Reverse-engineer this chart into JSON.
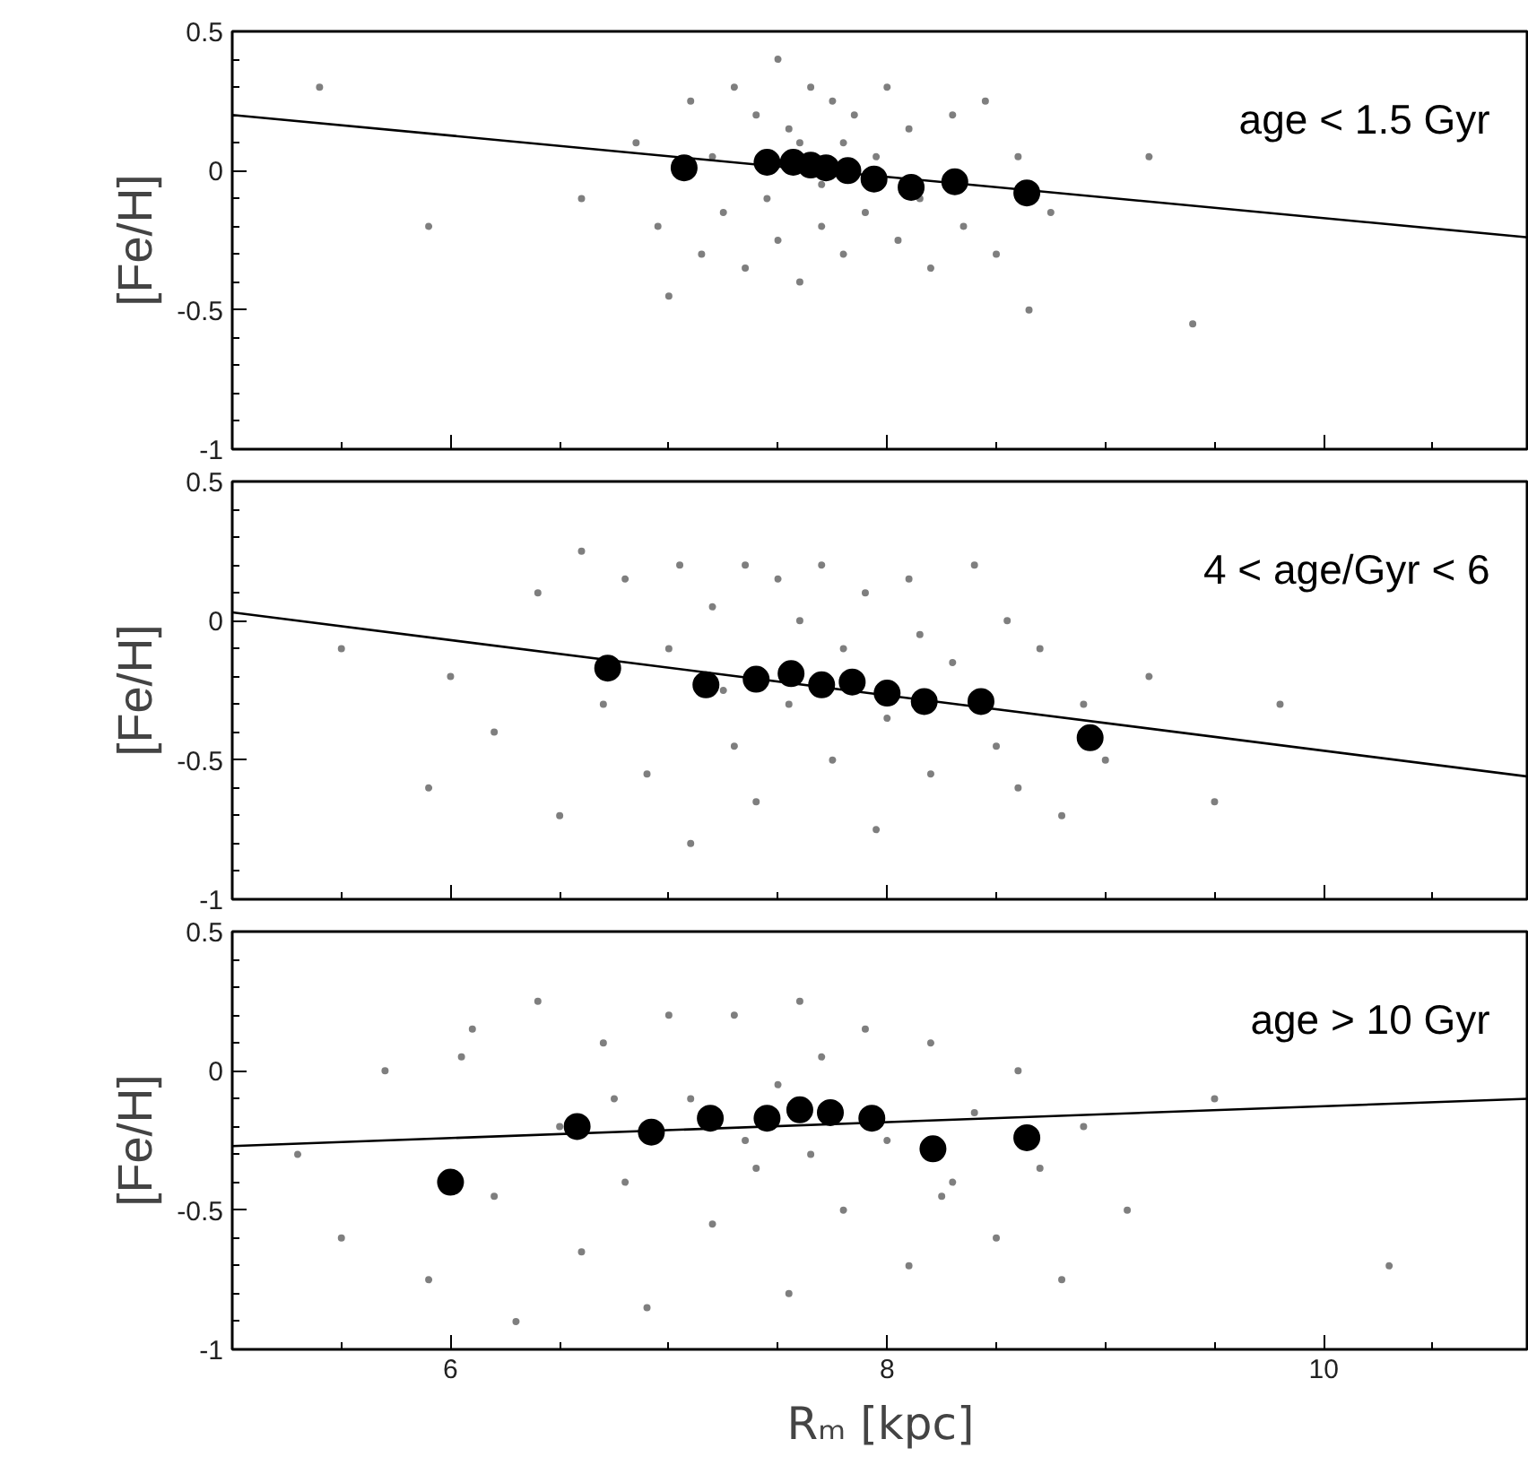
{
  "chart_data": [
    {
      "type": "scatter",
      "ylabel": "[Fe/H]",
      "xlim": [
        5,
        10.94
      ],
      "ylim": [
        -1,
        0.5
      ],
      "xticks": [
        6,
        8,
        10
      ],
      "yticks": [
        -1,
        -0.5,
        0,
        0.5
      ],
      "tick_labels": "y",
      "grid": false,
      "annotations": [
        "age < 1.5 Gyr"
      ],
      "series": [
        {
          "marker": "circle",
          "color": "#7f7f7f",
          "x": [
            5.9,
            6.6,
            6.85,
            6.95,
            7.0,
            7.1,
            7.15,
            7.2,
            7.25,
            7.3,
            7.35,
            7.4,
            7.45,
            7.5,
            7.5,
            7.55,
            7.6,
            7.6,
            7.65,
            7.7,
            7.7,
            7.75,
            7.8,
            7.8,
            7.85,
            7.9,
            7.95,
            8.0,
            8.05,
            8.1,
            8.15,
            8.2,
            8.3,
            8.35,
            8.45,
            8.5,
            8.6,
            8.65,
            8.75,
            9.2,
            9.4,
            5.4
          ],
          "values": [
            -0.2,
            -0.1,
            0.1,
            -0.2,
            -0.45,
            0.25,
            -0.3,
            0.05,
            -0.15,
            0.3,
            -0.35,
            0.2,
            -0.1,
            0.4,
            -0.25,
            0.15,
            0.1,
            -0.4,
            0.3,
            -0.05,
            -0.2,
            0.25,
            0.1,
            -0.3,
            0.2,
            -0.15,
            0.05,
            0.3,
            -0.25,
            0.15,
            -0.1,
            -0.35,
            0.2,
            -0.2,
            0.25,
            -0.3,
            0.05,
            -0.5,
            -0.15,
            0.05,
            -0.55,
            0.3
          ]
        },
        {
          "marker": "circle",
          "color": "#000000",
          "x": [
            7.07,
            7.45,
            7.57,
            7.65,
            7.72,
            7.82,
            7.94,
            8.11,
            8.31,
            8.64
          ],
          "values": [
            0.01,
            0.03,
            0.03,
            0.02,
            0.01,
            0.0,
            -0.03,
            -0.06,
            -0.04,
            -0.08
          ]
        },
        {
          "type": "line",
          "color": "#000000",
          "x": [
            5,
            10.94
          ],
          "values": [
            0.2,
            -0.24
          ]
        }
      ]
    },
    {
      "type": "scatter",
      "ylabel": "[Fe/H]",
      "xlim": [
        5,
        10.94
      ],
      "ylim": [
        -1,
        0.5
      ],
      "xticks": [
        6,
        8,
        10
      ],
      "yticks": [
        -1,
        -0.5,
        0,
        0.5
      ],
      "tick_labels": "y",
      "grid": false,
      "annotations": [
        "4 < age/Gyr < 6"
      ],
      "series": [
        {
          "marker": "circle",
          "color": "#7f7f7f",
          "x": [
            5.5,
            5.9,
            6.2,
            6.4,
            6.5,
            6.6,
            6.7,
            6.8,
            6.9,
            7.0,
            7.05,
            7.1,
            7.2,
            7.3,
            7.35,
            7.4,
            7.5,
            7.55,
            7.6,
            7.7,
            7.75,
            7.8,
            7.9,
            7.95,
            8.0,
            8.1,
            8.2,
            8.3,
            8.4,
            8.5,
            8.6,
            8.7,
            8.8,
            8.9,
            9.0,
            9.2,
            9.5,
            9.8,
            6.0,
            7.25,
            8.15,
            8.55
          ],
          "values": [
            -0.1,
            -0.6,
            -0.4,
            0.1,
            -0.7,
            0.25,
            -0.3,
            0.15,
            -0.55,
            -0.1,
            0.2,
            -0.8,
            0.05,
            -0.45,
            0.2,
            -0.65,
            0.15,
            -0.3,
            0.0,
            0.2,
            -0.5,
            -0.1,
            0.1,
            -0.75,
            -0.35,
            0.15,
            -0.55,
            -0.15,
            0.2,
            -0.45,
            -0.6,
            -0.1,
            -0.7,
            -0.3,
            -0.5,
            -0.2,
            -0.65,
            -0.3,
            -0.2,
            -0.25,
            -0.05,
            0.0
          ]
        },
        {
          "marker": "circle",
          "color": "#000000",
          "x": [
            6.72,
            7.17,
            7.4,
            7.56,
            7.7,
            7.84,
            8.0,
            8.17,
            8.43,
            8.93
          ],
          "values": [
            -0.17,
            -0.23,
            -0.21,
            -0.19,
            -0.23,
            -0.22,
            -0.26,
            -0.29,
            -0.29,
            -0.42
          ]
        },
        {
          "type": "line",
          "color": "#000000",
          "x": [
            5,
            10.94
          ],
          "values": [
            0.03,
            -0.56
          ]
        }
      ]
    },
    {
      "type": "scatter",
      "xlabel": "Rₘ [kpc]",
      "ylabel": "[Fe/H]",
      "xlim": [
        5,
        10.94
      ],
      "ylim": [
        -1,
        0.5
      ],
      "xticks": [
        6,
        8,
        10
      ],
      "yticks": [
        -1,
        -0.5,
        0,
        0.5
      ],
      "grid": false,
      "annotations": [
        "age > 10 Gyr"
      ],
      "series": [
        {
          "marker": "circle",
          "color": "#7f7f7f",
          "x": [
            5.3,
            5.5,
            5.7,
            5.9,
            6.1,
            6.2,
            6.3,
            6.4,
            6.5,
            6.6,
            6.7,
            6.8,
            6.9,
            7.0,
            7.1,
            7.2,
            7.3,
            7.4,
            7.5,
            7.55,
            7.6,
            7.65,
            7.7,
            7.8,
            7.9,
            8.0,
            8.1,
            8.2,
            8.3,
            8.4,
            8.5,
            8.6,
            8.7,
            8.8,
            8.9,
            9.1,
            9.5,
            10.3,
            6.05,
            6.75,
            7.35,
            8.25
          ],
          "values": [
            -0.3,
            -0.6,
            0.0,
            -0.75,
            0.15,
            -0.45,
            -0.9,
            0.25,
            -0.2,
            -0.65,
            0.1,
            -0.4,
            -0.85,
            0.2,
            -0.1,
            -0.55,
            0.2,
            -0.35,
            -0.05,
            -0.8,
            0.25,
            -0.3,
            0.05,
            -0.5,
            0.15,
            -0.25,
            -0.7,
            0.1,
            -0.4,
            -0.15,
            -0.6,
            0.0,
            -0.35,
            -0.75,
            -0.2,
            -0.5,
            -0.1,
            -0.7,
            0.05,
            -0.1,
            -0.25,
            -0.45
          ]
        },
        {
          "marker": "circle",
          "color": "#000000",
          "x": [
            6.0,
            6.58,
            6.92,
            7.19,
            7.45,
            7.6,
            7.74,
            7.93,
            8.21,
            8.64
          ],
          "values": [
            -0.4,
            -0.2,
            -0.22,
            -0.17,
            -0.17,
            -0.14,
            -0.15,
            -0.17,
            -0.28,
            -0.24
          ]
        },
        {
          "type": "line",
          "color": "#000000",
          "x": [
            5,
            10.94
          ],
          "values": [
            -0.27,
            -0.1
          ]
        }
      ]
    }
  ]
}
